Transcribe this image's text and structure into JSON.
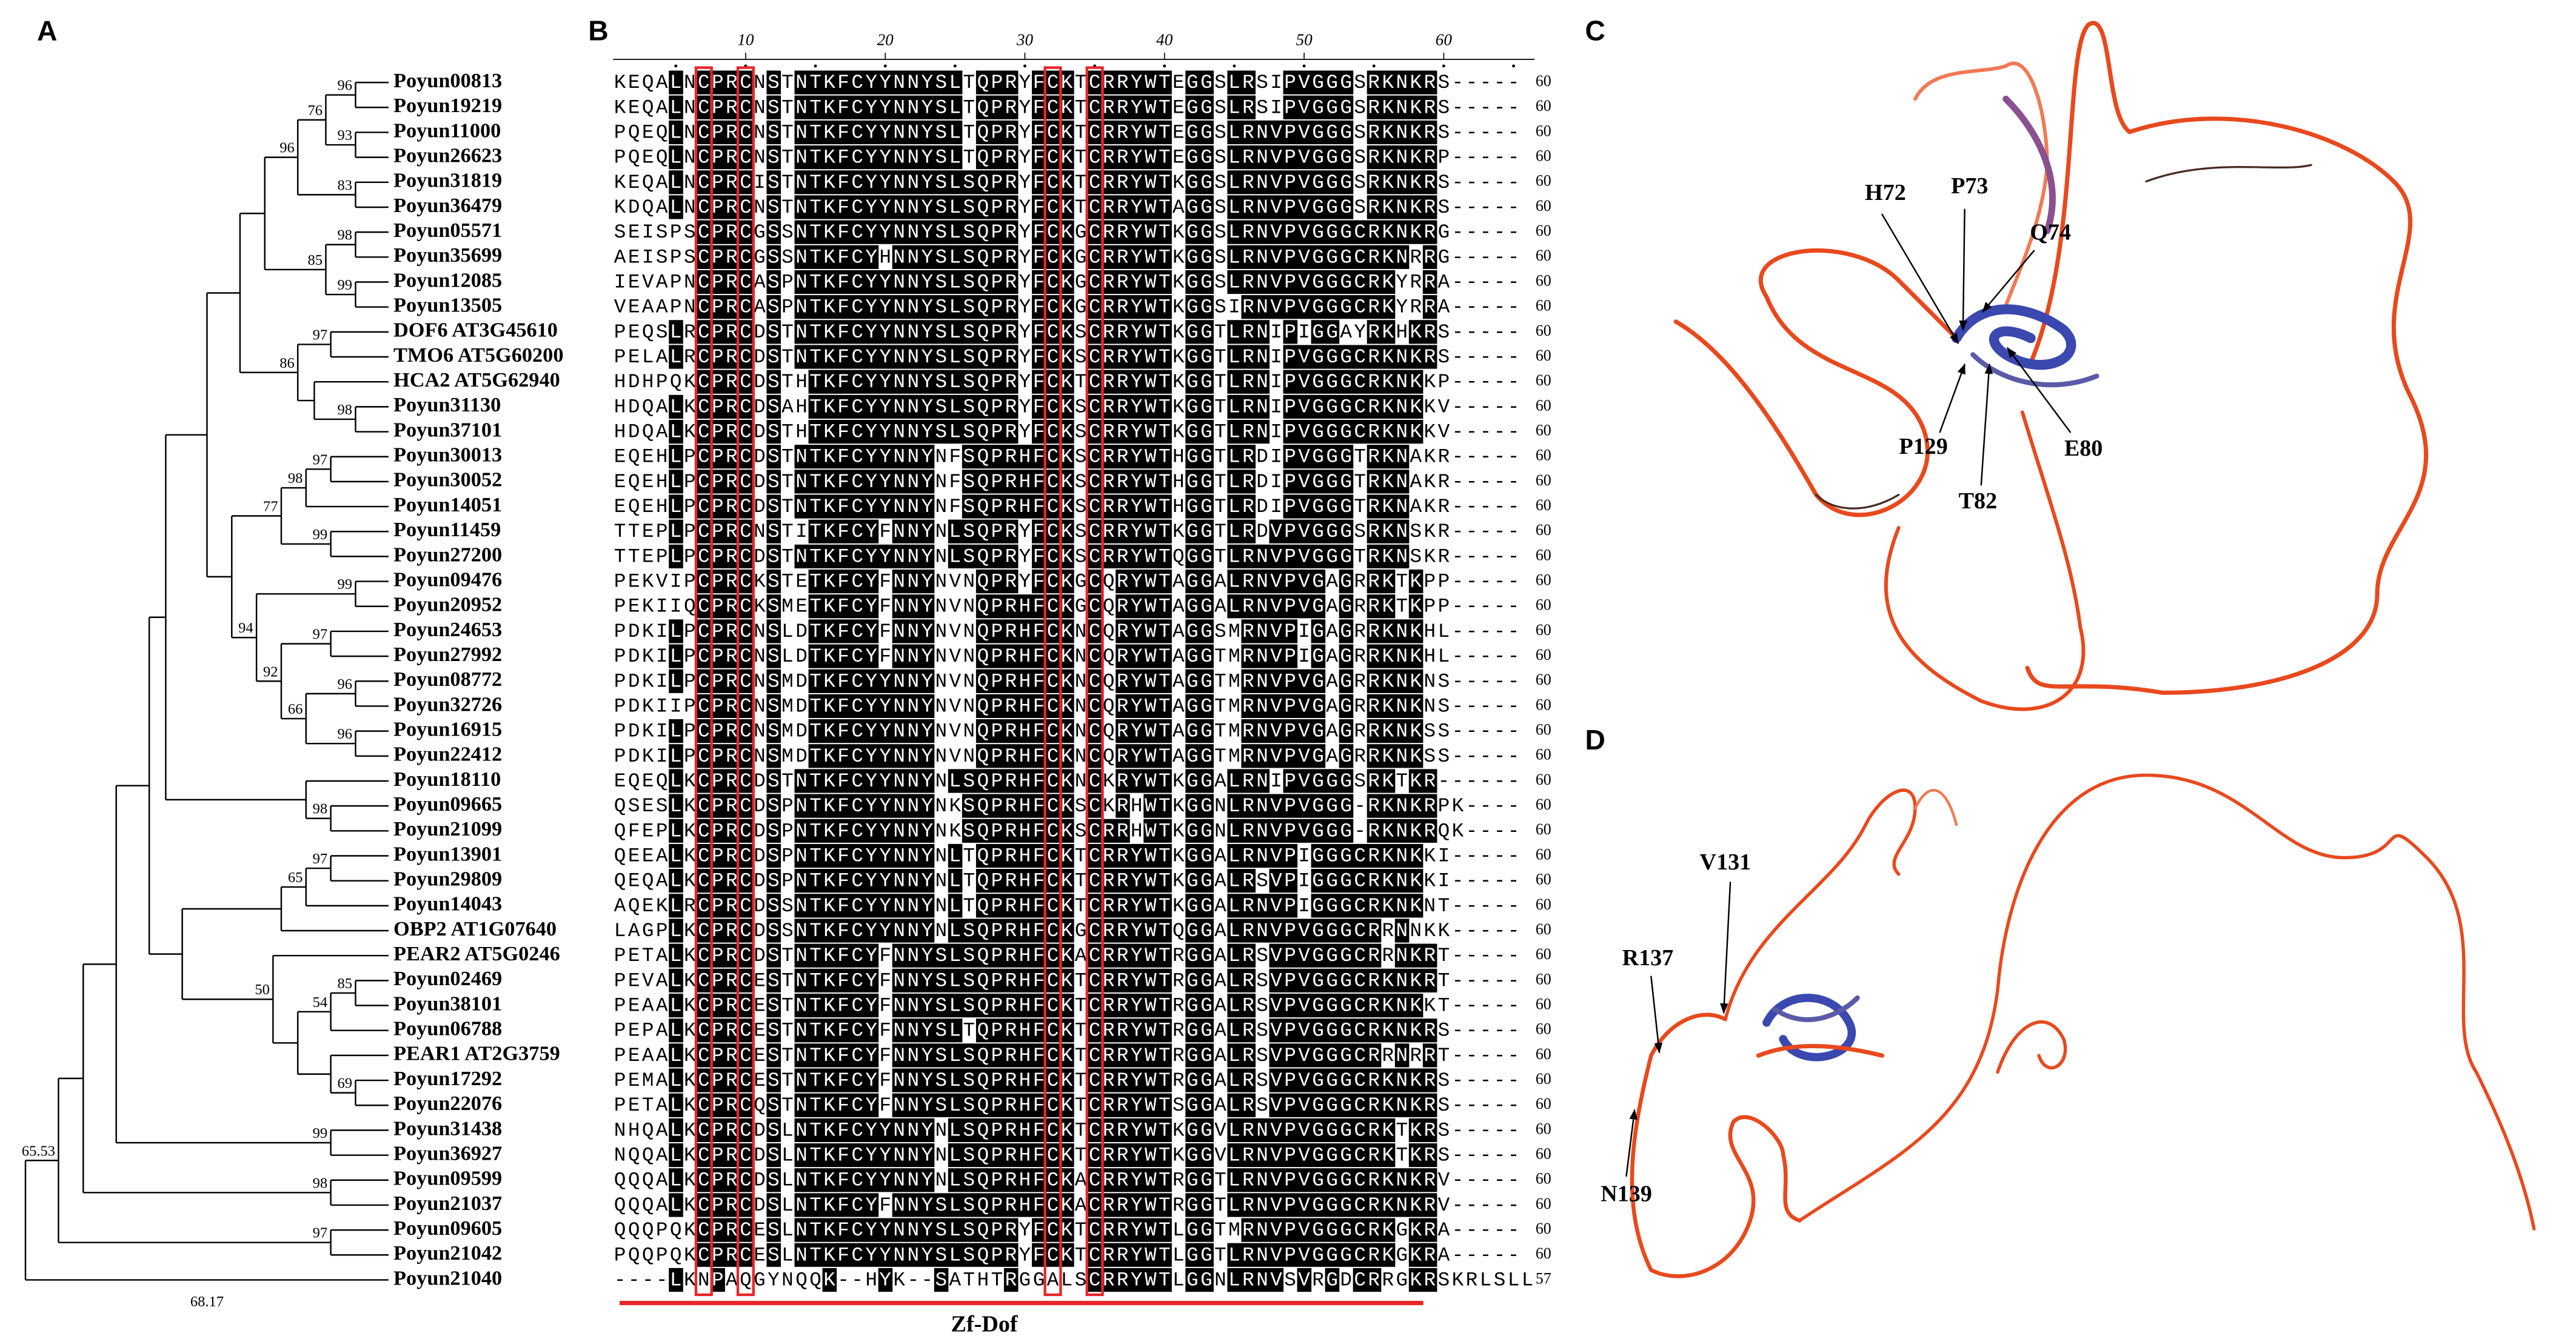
{
  "panels": {
    "a": "A",
    "b": "B",
    "c": "C",
    "d": "D"
  },
  "tree": {
    "leaves": [
      "Poyun00813",
      "Poyun19219",
      "Poyun11000",
      "Poyun26623",
      "Poyun31819",
      "Poyun36479",
      "Poyun05571",
      "Poyun35699",
      "Poyun12085",
      "Poyun13505",
      "DOF6 AT3G45610",
      "TMO6 AT5G60200",
      "HCA2 AT5G62940",
      "Poyun31130",
      "Poyun37101",
      "Poyun30013",
      "Poyun30052",
      "Poyun14051",
      "Poyun11459",
      "Poyun27200",
      "Poyun09476",
      "Poyun20952",
      "Poyun24653",
      "Poyun27992",
      "Poyun08772",
      "Poyun32726",
      "Poyun16915",
      "Poyun22412",
      "Poyun18110",
      "Poyun09665",
      "Poyun21099",
      "Poyun13901",
      "Poyun29809",
      "Poyun14043",
      "OBP2 AT1G07640",
      "PEAR2 AT5G0246",
      "Poyun02469",
      "Poyun38101",
      "Poyun06788",
      "PEAR1 AT2G3759",
      "Poyun17292",
      "Poyun22076",
      "Poyun31438",
      "Poyun36927",
      "Poyun09599",
      "Poyun21037",
      "Poyun09605",
      "Poyun21042",
      "Poyun21040"
    ],
    "support": [
      96,
      76,
      93,
      96,
      83,
      98,
      85,
      99,
      97,
      86,
      98,
      97,
      98,
      77,
      99,
      99,
      94,
      97,
      92,
      96,
      66,
      96,
      98,
      97,
      65,
      85,
      50,
      54,
      69,
      99,
      98,
      97,
      65.53,
      68.17
    ]
  },
  "alignment": {
    "ruler": [
      10,
      20,
      30,
      40,
      50,
      60
    ],
    "domain": "Zf-Dof",
    "rows": [
      {
        "seq": "KEQALNCPRCNSTNTKFCYYNNYSLTQPRYFCKTCRRYWTEGGSLRSIPVGGGSRKNKRS-----",
        "length": 60
      },
      {
        "seq": "KEQALNCPRCNSTNTKFCYYNNYSLTQPRYFCKTCRRYWTEGGSLRSIPVGGGSRKNKRS-----",
        "length": 60
      },
      {
        "seq": "PQEQLNCPRCNSTNTKFCYYNNYSLTQPRYFCKTCRRYWTEGGSLRNVPVGGGSRKNKRS-----",
        "length": 60
      },
      {
        "seq": "PQEQLNCPRCNSTNTKFCYYNNYSLTQPRYFCKTCRRYWTEGGSLRNVPVGGGSRKNKRP-----",
        "length": 60
      },
      {
        "seq": "KEQALNCPRCISTNTKFCYYNNYSLSQPRYFCKTCRRYWTKGGSLRNVPVGGGSRKNKRS-----",
        "length": 60
      },
      {
        "seq": "KDQALNCPRCNSTNTKFCYYNNYSLSQPRYFCKTCRRYWTAGGSLRNVPVGGGSRKNKRS-----",
        "length": 60
      },
      {
        "seq": "SEISPSCPRCGSSNTKFCYYNNYSLSQPRYFCKGCRRYWTKGGSLRNVPVGGGCRKNKRG-----",
        "length": 60
      },
      {
        "seq": "AEISPSCPRCGSSNTKFCYHNNYSLSQPRYFCKGCRRYWTKGGSLRNVPVGGGCRKNRRG-----",
        "length": 60
      },
      {
        "seq": "IEVAPNCPRCASPNTKFCYYNNYSLSQPRYFCKGCRRYWTKGGSLRNVPVGGGCRKYRRA-----",
        "length": 60
      },
      {
        "seq": "VEAAPNCPRCASPNTKFCYYNNYSLSQPRYFCKGCRRYWTKGGSIRNVPVGGGCRKYRRA-----",
        "length": 60
      },
      {
        "seq": "PEQSLRCPRCDSTNTKFCYYNNYSLSQPRYFCKSCRRYWTKGGTLRNIPIGGAYRKHKRS-----",
        "length": 60
      },
      {
        "seq": "PELALRCPRCDSTNTKFCYYNNYSLSQPRYFCKSCRRYWTKGGTLRNIPVGGGCRKNKRS-----",
        "length": 60
      },
      {
        "seq": "HDHPQKCPRCDSTHTKFCYYNNYSLSQPRYFCKTCRRYWTKGGTLRNIPVGGGCRKNKKP-----",
        "length": 60
      },
      {
        "seq": "HDQALKCPRCDSAHTKFCYYNNYSLSQPRYFCKSCRRYWTKGGTLRNIPVGGGCRKNKKV-----",
        "length": 60
      },
      {
        "seq": "HDQALKCPRCDSTHTKFCYYNNYSLSQPRYFCKSCRRYWTKGGTLRNIPVGGGCRKNKKV-----",
        "length": 60
      },
      {
        "seq": "EQEHLPCPRCDSTNTKFCYYNNYNFSQPRHFCKSCRRYWTHGGTLRDIPVGGGTRKNAKR-----",
        "length": 60
      },
      {
        "seq": "EQEHLPCPRCDSTNTKFCYYNNYNFSQPRHFCKSCRRYWTHGGTLRDIPVGGGTRKNAKR-----",
        "length": 60
      },
      {
        "seq": "EQEHLPCPRCDSTNTKFCYYNNYNFSQPRHFCKSCRRYWTHGGTLRDIPVGGGTRKNAKR-----",
        "length": 60
      },
      {
        "seq": "TTEPLPCPRCNSTITKFCYFNNYNLSQPRYFCKSCRRYWTKGGTLRDVPVGGGSRKNSKR-----",
        "length": 60
      },
      {
        "seq": "TTEPLPCPRCDSTNTKFCYYNNYNLSQPRYFCKSCRRYWTQGGTLRNVPVGGGTRKNSKR-----",
        "length": 60
      },
      {
        "seq": "PEKVIPCPRCKSTETKFCYFNNYNVNQPRYFCKGCQRYWTAGGALRNVPVGAGRRKTKPP-----",
        "length": 60
      },
      {
        "seq": "PEKIIQCPRCKSMETKFCYFNNYNVNQPRHFCKGCQRYWTAGGALRNVPVGAGRRKTKPP-----",
        "length": 60
      },
      {
        "seq": "PDKILPCPRCNSLDTKFCYFNNYNVNQPRHFCKNCQRYWTAGGSMRNVPIGAGRRKNKHL-----",
        "length": 60
      },
      {
        "seq": "PDKILPCPRCNSLDTKFCYFNNYNVNQPRHFCKNCQRYWTAGGTMRNVPIGAGRRKNKHL-----",
        "length": 60
      },
      {
        "seq": "PDKILPCPRCNSMDTKFCYYNNYNVNQPRHFCKNCQRYWTAGGTMRNVPVGAGRRKNKNS-----",
        "length": 60
      },
      {
        "seq": "PDKIIPCPRCNSMDTKFCYYNNYNVNQPRHFCKNCQRYWTAGGTMRNVPVGAGRRKNKNS-----",
        "length": 60
      },
      {
        "seq": "PDKILPCPRCNSMDTKFCYYNNYNVNQPRHFCKNCQRYWTAGGTMRNVPVGAGRRKNKSS-----",
        "length": 60
      },
      {
        "seq": "PDKILPCPRCNSMDTKFCYYNNYNVNQPRHFCKNCQRYWTAGGTMRNVPVGAGRRKNKSS-----",
        "length": 60
      },
      {
        "seq": "EQEQLKCPRCDSTNTKFCYYNNYNLSQPRHFCKNCKRYWTKGGALRNIPVGGGSRKTKR------",
        "length": 60
      },
      {
        "seq": "QSESLKCPRCDSPNTKFCYYNNYNKSQPRHFCKSCKRHWTKGGNLRNVPVGGG-RKNKRPK----",
        "length": 60
      },
      {
        "seq": "QFEPLKCPRCDSPNTKFCYYNNYNKSQPRHFCKSCRRHWTKGGNLRNVPVGGG-RKNKRQK----",
        "length": 60
      },
      {
        "seq": "QEEALKCPRCDSPNTKFCYYNNYNLTQPRHFCKTCRRYWTKGGALRNVPIGGGCRKNKKI-----",
        "length": 60
      },
      {
        "seq": "QEQALKCPRCDSPNTKFCYYNNYNLTQPRHFCKTCRRYWTKGGALRSVPIGGGCRKNKKI-----",
        "length": 60
      },
      {
        "seq": "AQEKLRCPRCDSSNTKFCYYNNYNLTQPRHFCKTCRRYWTKGGALRNVPIGGGCRKNKNT-----",
        "length": 60
      },
      {
        "seq": "LAGPLKCPRCDSSNTKFCYYNNYNLSQPRHFCKGCRRYWTQGGALRNVPVGGGCRRNNKK-----",
        "length": 60
      },
      {
        "seq": "PETALKCPRCDSTNTKFCYFNNYSLSQPRHFCKACRRYWTRGGALRSVPVGGGCRRNKRT-----",
        "length": 60
      },
      {
        "seq": "PEVALKCPRCESTNTKFCYFNNYSLSQPRHFCKTCRRYWTRGGALRSVPVGGGCRKNKRT-----",
        "length": 60
      },
      {
        "seq": "PEAALKCPRCESTNTKFCYFNNYSLSQPRHFCKTCRRYWTRGGALRSVPVGGGCRKNKKT-----",
        "length": 60
      },
      {
        "seq": "PEPALKCPRCESTNTKFCYFNNYSLTQPRHFCKTCRRYWTRGGALRSVPVGGGCRKNKRS-----",
        "length": 60
      },
      {
        "seq": "PEAALKCPRCESTNTKFCYFNNYSLSQPRHFCKTCRRYWTRGGALRSVPVGGGCRRNRRT-----",
        "length": 60
      },
      {
        "seq": "PEMALKCPRCESTNTKFCYFNNYSLSQPRHFCKTCRRYWTRGGALRSVPVGGGCRKNKRS-----",
        "length": 60
      },
      {
        "seq": "PETALKCPRCQSTNTKFCYFNNYSLSQPRHFCKTCRRYWTSGGALRSVPVGGGCRKNKRS-----",
        "length": 60
      },
      {
        "seq": "NHQALKCPRCDSLNTKFCYYNNYNLSQPRHFCKTCRRYWTKGGVLRNVPVGGGCRKTKRS-----",
        "length": 60
      },
      {
        "seq": "NQQALKCPRCDSLNTKFCYYNNYNLSQPRHFCKTCRRYWTKGGVLRNVPVGGGCRKTKRS-----",
        "length": 60
      },
      {
        "seq": "QQQALKCPRCDSLNTKFCYYNNYNLSQPRHFCKACRRYWTRGGTLRNVPVGGGCRKNKRV-----",
        "length": 60
      },
      {
        "seq": "QQQALKCPRCDSLNTKFCYFNNYSLSQPRHFCKACRRYWTRGGTLRNVPVGGGCRKNKRV-----",
        "length": 60
      },
      {
        "seq": "QQQPQKCPRCESLNTKFCYYNNYSLSQPRYFCKTCRRYWTLGGTMRNVPVGGGCRKGKRA-----",
        "length": 60
      },
      {
        "seq": "PQQPQKCPRCESLNTKFCYYNNYSLSQPRYFCKTCRRYWTLGGTLRNVPVGGGCRKGKRA-----",
        "length": 60
      },
      {
        "seq": "----LKNPAQGYNQQK--HYK--SATHTRGGALSCRRYWTLGGNLRNVSVRGDCRRGKRSKRLSLL",
        "length": 57
      }
    ]
  },
  "structure_c": {
    "labels": [
      "H72",
      "P73",
      "Q74",
      "P129",
      "T82",
      "E80"
    ]
  },
  "structure_d": {
    "labels": [
      "V131",
      "R137",
      "N139"
    ]
  }
}
